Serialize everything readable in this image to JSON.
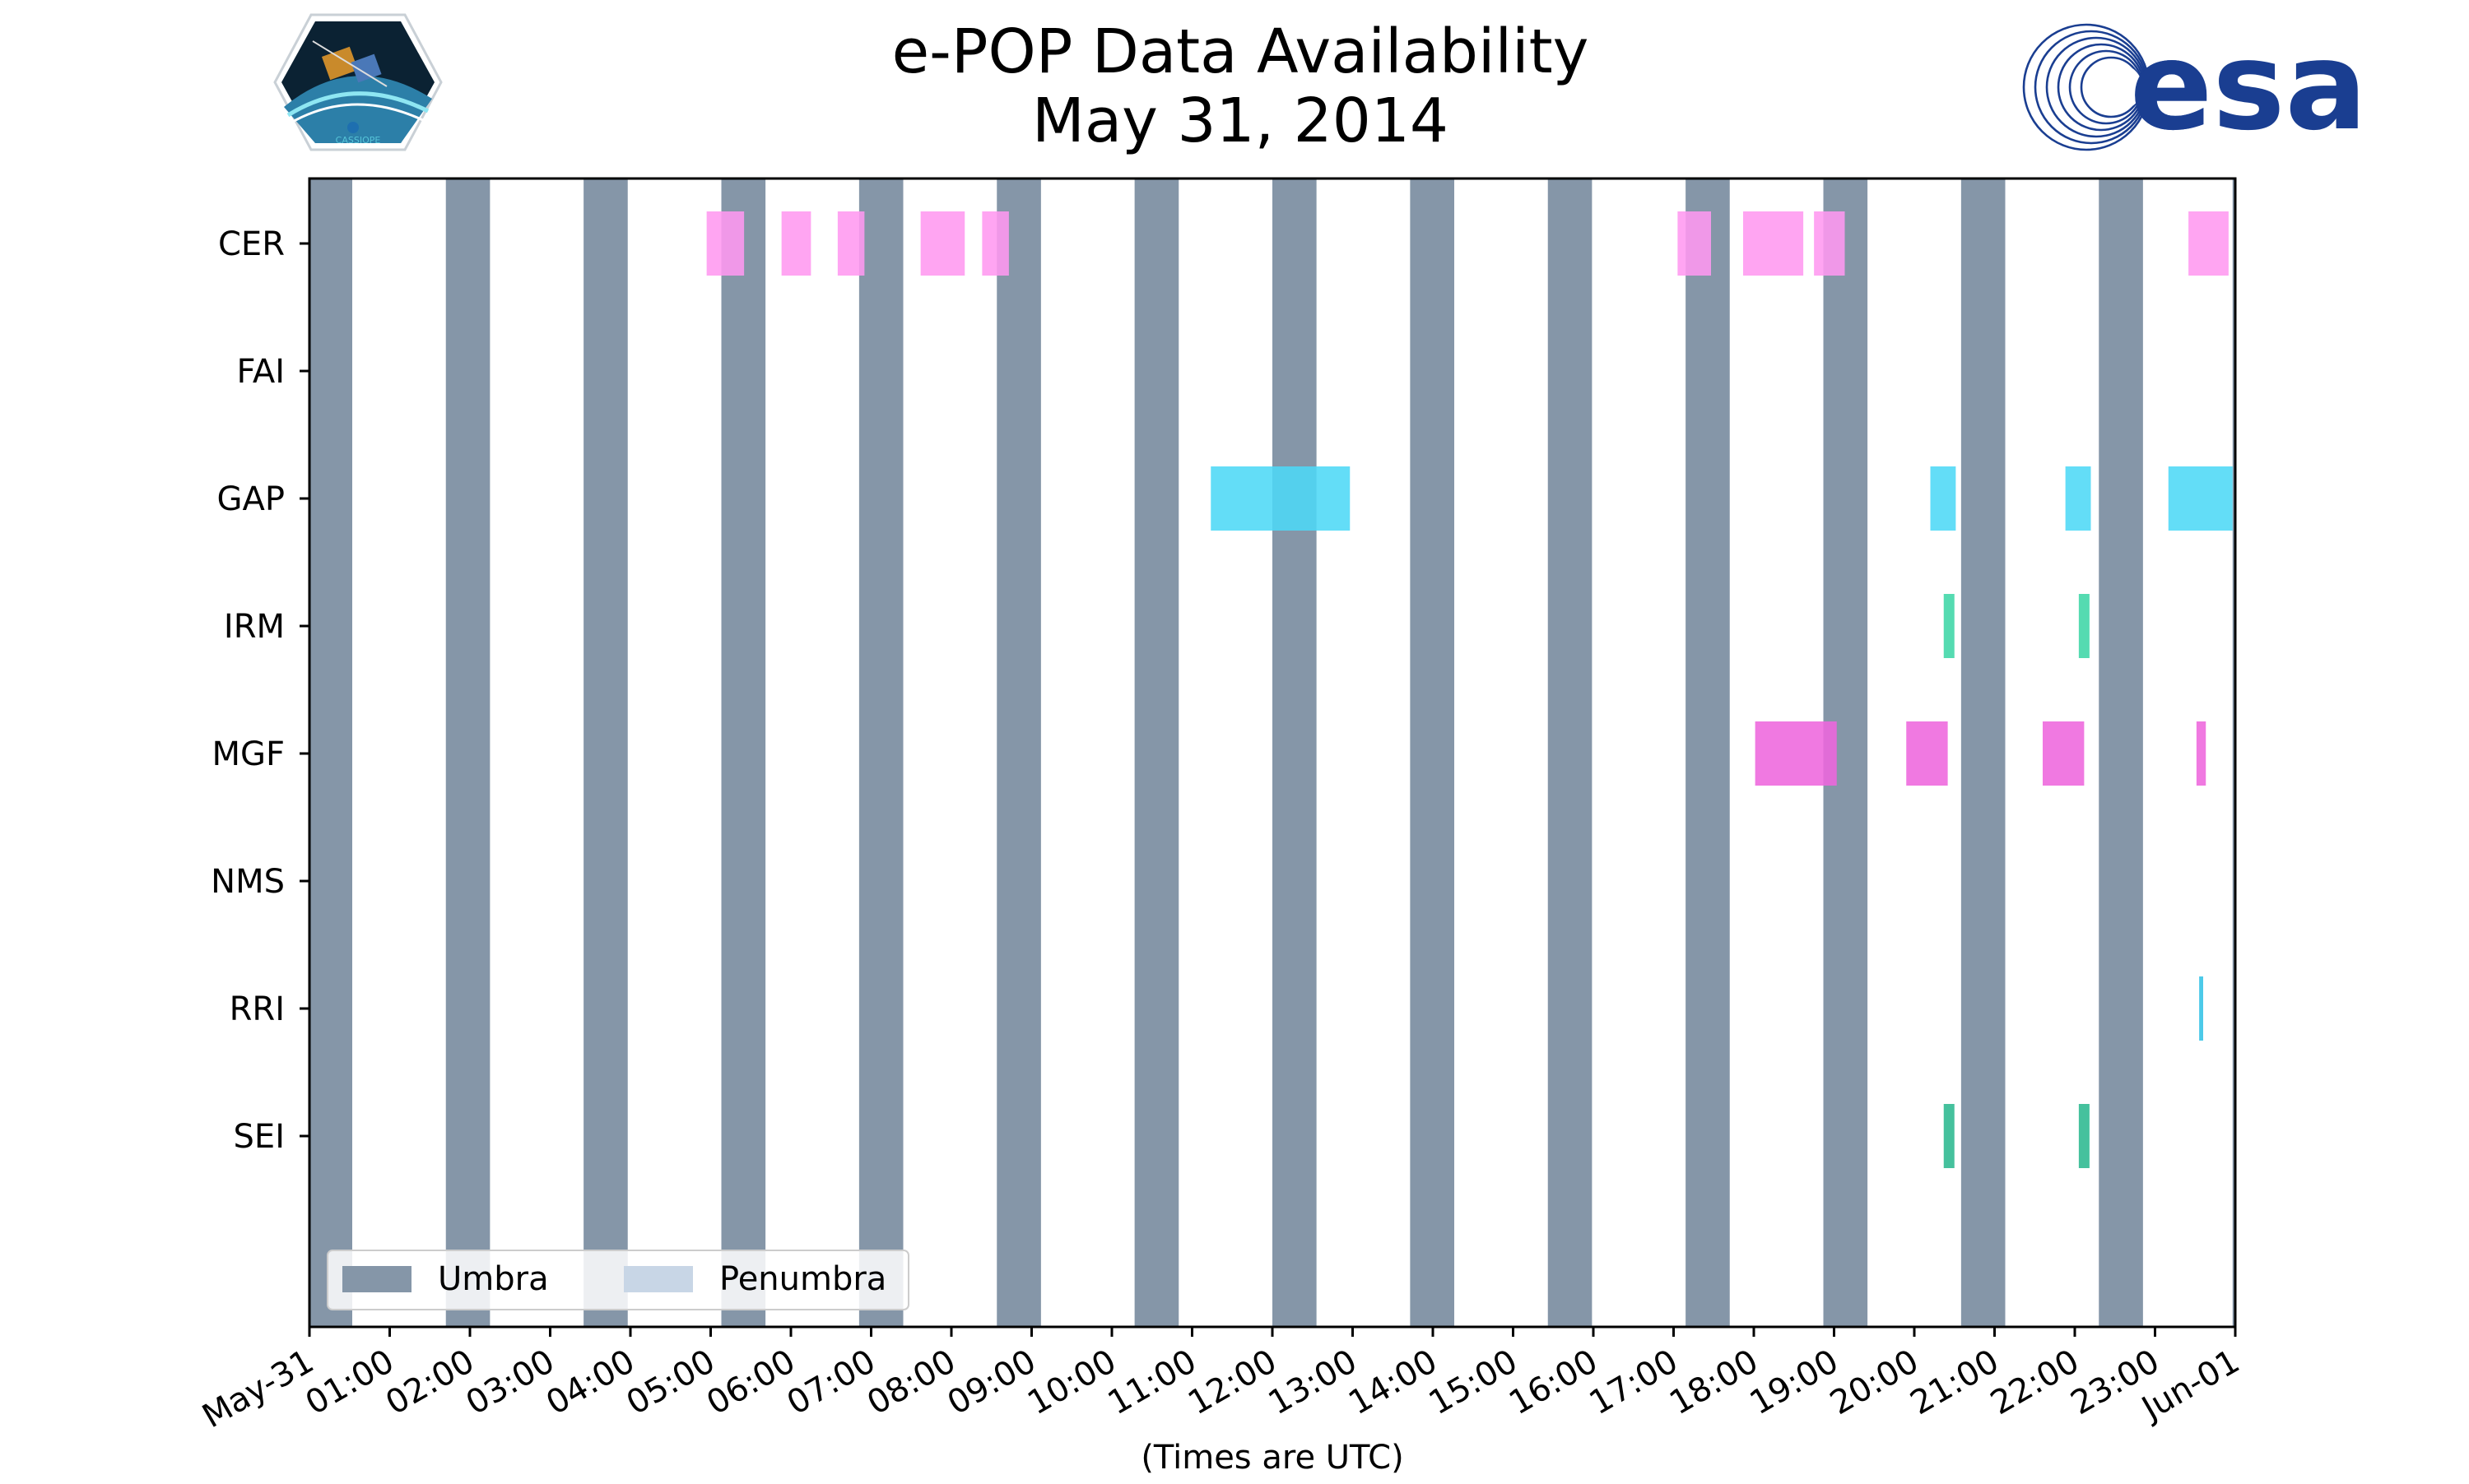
{
  "chart_data": {
    "type": "timeline",
    "title": "e-POP Data Availability",
    "subtitle": "May 31, 2014",
    "xlabel": "(Times are UTC)",
    "x_range": [
      "2014-05-31T00:00",
      "2014-06-01T00:00"
    ],
    "x_tick_labels": [
      "May-31",
      "01:00",
      "02:00",
      "03:00",
      "04:00",
      "05:00",
      "06:00",
      "07:00",
      "08:00",
      "09:00",
      "10:00",
      "11:00",
      "12:00",
      "13:00",
      "14:00",
      "15:00",
      "16:00",
      "17:00",
      "18:00",
      "19:00",
      "20:00",
      "21:00",
      "22:00",
      "23:00",
      "Jun-01"
    ],
    "instruments": [
      "CER",
      "FAI",
      "GAP",
      "IRM",
      "MGF",
      "NMS",
      "RRI",
      "SEI"
    ],
    "umbra_color": "#8596a8",
    "penumbra_color": "#c8d6e6",
    "umbra_intervals": [
      [
        "00:00",
        "00:32"
      ],
      [
        "01:42",
        "02:15"
      ],
      [
        "03:25",
        "03:58"
      ],
      [
        "05:08",
        "05:41"
      ],
      [
        "06:51",
        "07:24"
      ],
      [
        "08:34",
        "09:07"
      ],
      [
        "10:17",
        "10:50"
      ],
      [
        "12:00",
        "12:33"
      ],
      [
        "13:43",
        "14:16"
      ],
      [
        "15:26",
        "15:59"
      ],
      [
        "17:09",
        "17:42"
      ],
      [
        "18:52",
        "19:25"
      ],
      [
        "20:35",
        "21:08"
      ],
      [
        "22:18",
        "22:51"
      ],
      [
        "23:58",
        "24:00"
      ]
    ],
    "availability": [
      {
        "instrument": "CER",
        "color": "#ff99f0",
        "intervals": [
          [
            "04:57",
            "05:25"
          ],
          [
            "05:53",
            "06:15"
          ],
          [
            "06:35",
            "06:55"
          ],
          [
            "07:37",
            "08:10"
          ],
          [
            "08:23",
            "08:43"
          ],
          [
            "17:03",
            "17:28"
          ],
          [
            "17:52",
            "18:37"
          ],
          [
            "18:45",
            "19:08"
          ],
          [
            "23:25",
            "23:55"
          ]
        ]
      },
      {
        "instrument": "GAP",
        "color": "#4dd8f6",
        "intervals": [
          [
            "11:14",
            "12:58"
          ],
          [
            "20:12",
            "20:31"
          ],
          [
            "21:53",
            "22:12"
          ],
          [
            "23:10",
            "23:58"
          ]
        ]
      },
      {
        "instrument": "IRM",
        "color": "#3dd6a6",
        "intervals": [
          [
            "20:22",
            "20:30"
          ],
          [
            "22:03",
            "22:11"
          ]
        ]
      },
      {
        "instrument": "MGF",
        "color": "#ee66dd",
        "intervals": [
          [
            "18:01",
            "19:02"
          ],
          [
            "19:54",
            "20:25"
          ],
          [
            "21:36",
            "22:07"
          ],
          [
            "23:31",
            "23:38"
          ]
        ]
      },
      {
        "instrument": "RRI",
        "color": "#33c3e6",
        "intervals": [
          [
            "23:33",
            "23:36"
          ]
        ]
      },
      {
        "instrument": "SEI",
        "color": "#2bb88f",
        "intervals": [
          [
            "20:22",
            "20:30"
          ],
          [
            "22:03",
            "22:11"
          ]
        ]
      }
    ],
    "legend": {
      "placement": "lower-left",
      "entries": [
        "Umbra",
        "Penumbra"
      ]
    }
  },
  "logos": {
    "left": "CASSIOPE",
    "right": "esa"
  }
}
